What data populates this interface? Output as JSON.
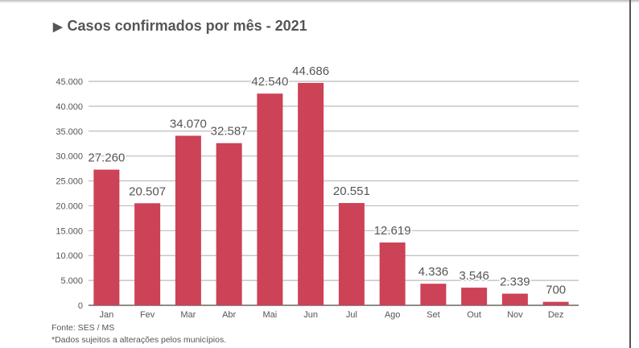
{
  "chart_data": {
    "type": "bar",
    "title": "Casos confirmados por mês - 2021",
    "title_icon": "play-triangle-icon",
    "categories": [
      "Jan",
      "Fev",
      "Mar",
      "Abr",
      "Mai",
      "Jun",
      "Jul",
      "Ago",
      "Set",
      "Out",
      "Nov",
      "Dez"
    ],
    "values": [
      27260,
      20507,
      34070,
      32587,
      42540,
      44686,
      20551,
      12619,
      4336,
      3546,
      2339,
      700
    ],
    "value_labels": [
      "27.260",
      "20.507",
      "34.070",
      "32.587",
      "42.540",
      "44.686",
      "20.551",
      "12.619",
      "4.336",
      "3.546",
      "2.339",
      "700"
    ],
    "yticks": [
      0,
      5000,
      10000,
      15000,
      20000,
      25000,
      30000,
      35000,
      40000,
      45000
    ],
    "ytick_labels": [
      "0",
      "5.000",
      "10.000",
      "15.000",
      "20.000",
      "25.000",
      "30.000",
      "35.000",
      "40.000",
      "45.000"
    ],
    "ylim": [
      0,
      45000
    ],
    "grid": true,
    "bar_color": "#CC4256",
    "xlabel": "",
    "ylabel": ""
  },
  "footer": {
    "source": "Fonte: SES / MS",
    "note": "*Dados sujeitos a alterações pelos municípios."
  }
}
